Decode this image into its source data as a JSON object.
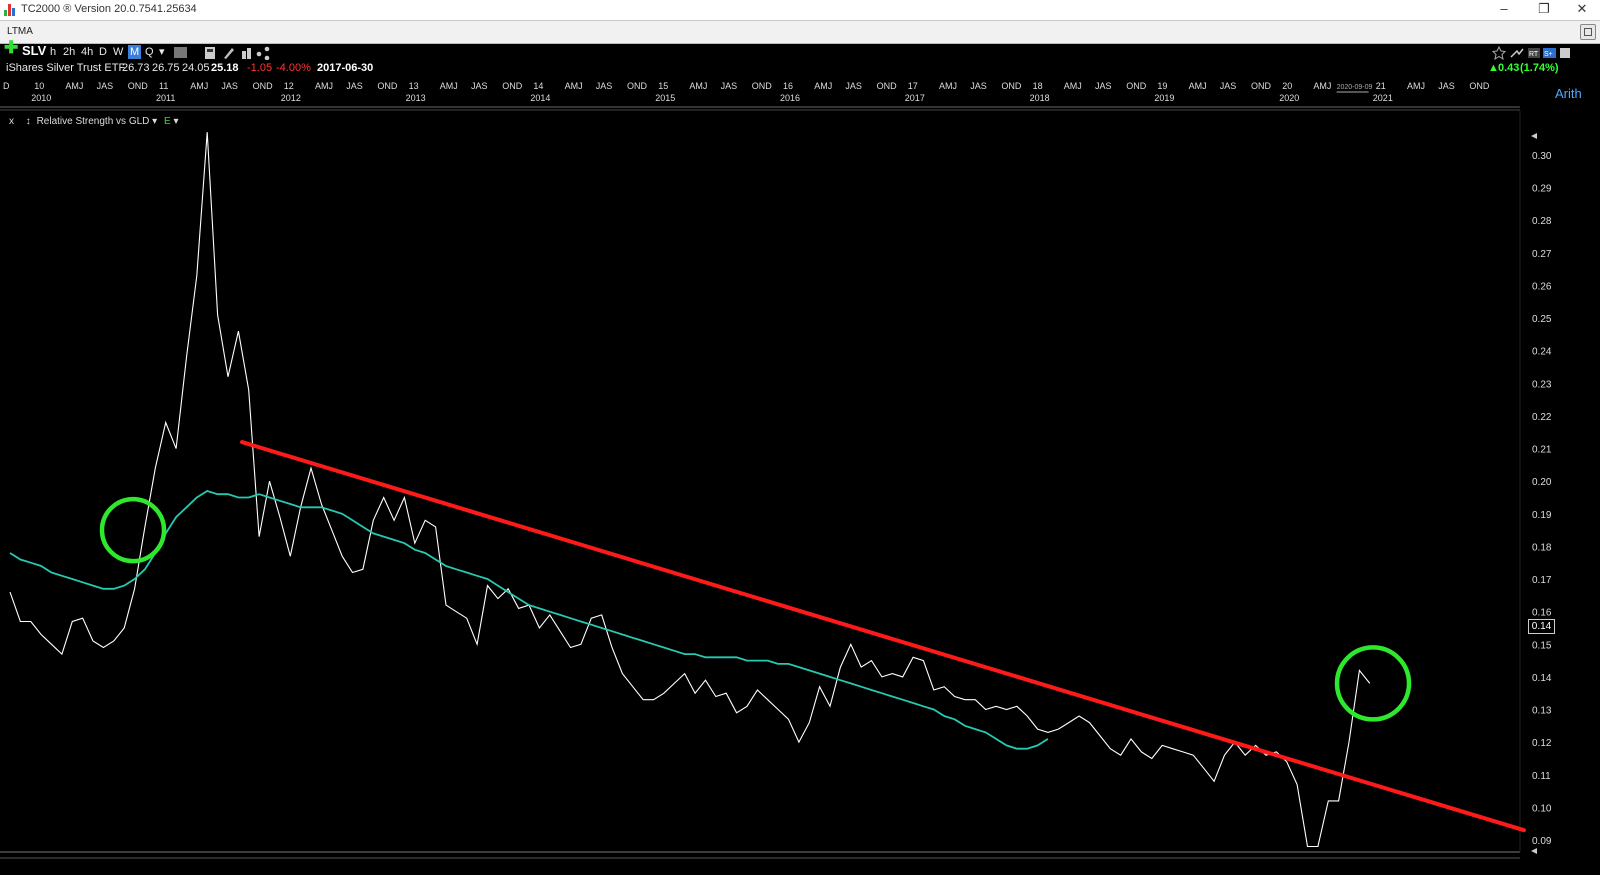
{
  "window": {
    "title": "TC2000 ® Version 20.0.7541.25634",
    "minimize_glyph": "–",
    "restore_glyph": "❐",
    "close_glyph": "✕"
  },
  "layout_tab": {
    "label": "LTMA"
  },
  "toolbar": {
    "plus": "✚",
    "symbol": "SLV",
    "timeframes": [
      "h",
      "2h",
      "4h",
      "D",
      "W",
      "M",
      "Q"
    ],
    "selected_timeframe": "M",
    "dropdown": "▾",
    "icons": [
      "tc-badge-icon",
      "calculator-icon",
      "pencil-icon",
      "chart-blocks-icon",
      "share-icon"
    ],
    "right_icons": [
      "star-icon",
      "trend-arrow-icon",
      "rt-badge",
      "s-plus-badge",
      "save-icon"
    ],
    "right_badges": [
      "RT",
      "S+"
    ]
  },
  "quote": {
    "name": "iShares Silver Trust ETF",
    "open": "26.73",
    "high": "26.75",
    "low": "24.05",
    "close": "25.18",
    "change": "-1.05",
    "change_pct": "-4.00%",
    "date": "2017-06-30",
    "live_change": "0.43",
    "live_change_pct": "(1.74%)",
    "live_arrow": "▲"
  },
  "scale_mode": "Arith",
  "indicator": {
    "close_x": "x",
    "arrows": "↕",
    "label": "Relative Strength vs GLD",
    "dropdown": "▾",
    "e_label": "E",
    "e_color": "#33dd33"
  },
  "current_value_tag": "0.14",
  "chart_data": {
    "type": "line",
    "title": "Relative Strength vs GLD",
    "x_axis_top_row": [
      "D",
      "10",
      "AMJ",
      "JAS",
      "OND",
      "11",
      "AMJ",
      "JAS",
      "OND",
      "12",
      "AMJ",
      "JAS",
      "OND",
      "13",
      "AMJ",
      "JAS",
      "OND",
      "14",
      "AMJ",
      "JAS",
      "OND",
      "15",
      "AMJ",
      "JAS",
      "OND",
      "16",
      "AMJ",
      "JAS",
      "OND",
      "17",
      "AMJ",
      "JAS",
      "OND",
      "18",
      "AMJ",
      "JAS",
      "OND",
      "19",
      "AMJ",
      "JAS",
      "OND",
      "20",
      "AMJ",
      "2020-09-09",
      "21",
      "AMJ",
      "JAS",
      "OND"
    ],
    "x_axis_years": [
      "2010",
      "2011",
      "2012",
      "2013",
      "2014",
      "2015",
      "2016",
      "2017",
      "2018",
      "2019",
      "2020",
      "2021"
    ],
    "y_ticks": [
      "0.30",
      "0.29",
      "0.28",
      "0.27",
      "0.26",
      "0.25",
      "0.24",
      "0.23",
      "0.22",
      "0.21",
      "0.20",
      "0.19",
      "0.18",
      "0.17",
      "0.16",
      "0.15",
      "0.14",
      "0.13",
      "0.12",
      "0.11",
      "0.10",
      "0.09"
    ],
    "ylim": [
      0.085,
      0.31
    ],
    "scale": "arithmetic",
    "series": [
      {
        "name": "Relative Strength vs GLD",
        "color": "#ffffff",
        "values": [
          0.166,
          0.157,
          0.157,
          0.153,
          0.15,
          0.147,
          0.157,
          0.158,
          0.151,
          0.149,
          0.151,
          0.155,
          0.167,
          0.186,
          0.204,
          0.218,
          0.21,
          0.238,
          0.263,
          0.307,
          0.251,
          0.232,
          0.246,
          0.228,
          0.183,
          0.2,
          0.189,
          0.177,
          0.192,
          0.204,
          0.193,
          0.185,
          0.177,
          0.172,
          0.173,
          0.188,
          0.195,
          0.188,
          0.195,
          0.181,
          0.188,
          0.186,
          0.162,
          0.16,
          0.158,
          0.15,
          0.168,
          0.164,
          0.167,
          0.161,
          0.162,
          0.155,
          0.159,
          0.154,
          0.149,
          0.15,
          0.158,
          0.159,
          0.149,
          0.141,
          0.137,
          0.133,
          0.133,
          0.135,
          0.138,
          0.141,
          0.135,
          0.139,
          0.134,
          0.135,
          0.129,
          0.131,
          0.136,
          0.133,
          0.13,
          0.127,
          0.12,
          0.126,
          0.137,
          0.131,
          0.143,
          0.15,
          0.143,
          0.145,
          0.14,
          0.141,
          0.14,
          0.146,
          0.145,
          0.136,
          0.137,
          0.134,
          0.133,
          0.133,
          0.13,
          0.131,
          0.13,
          0.131,
          0.128,
          0.124,
          0.123,
          0.124,
          0.126,
          0.128,
          0.126,
          0.122,
          0.118,
          0.116,
          0.121,
          0.117,
          0.115,
          0.119,
          0.118,
          0.117,
          0.116,
          0.112,
          0.108,
          0.116,
          0.12,
          0.116,
          0.119,
          0.116,
          0.117,
          0.114,
          0.107,
          0.088,
          0.088,
          0.102,
          0.102,
          0.12,
          0.142,
          0.138
        ]
      },
      {
        "name": "LTMA",
        "color": "#27c9b0",
        "values": [
          0.178,
          0.176,
          0.175,
          0.174,
          0.172,
          0.171,
          0.17,
          0.169,
          0.168,
          0.167,
          0.167,
          0.168,
          0.17,
          0.173,
          0.178,
          0.184,
          0.189,
          0.192,
          0.195,
          0.197,
          0.196,
          0.196,
          0.195,
          0.195,
          0.196,
          0.195,
          0.194,
          0.193,
          0.192,
          0.192,
          0.192,
          0.191,
          0.19,
          0.188,
          0.186,
          0.184,
          0.183,
          0.182,
          0.181,
          0.179,
          0.178,
          0.176,
          0.174,
          0.173,
          0.172,
          0.171,
          0.17,
          0.168,
          0.166,
          0.164,
          0.162,
          0.161,
          0.16,
          0.159,
          0.158,
          0.157,
          0.156,
          0.155,
          0.154,
          0.153,
          0.152,
          0.151,
          0.15,
          0.149,
          0.148,
          0.147,
          0.147,
          0.146,
          0.146,
          0.146,
          0.146,
          0.145,
          0.145,
          0.145,
          0.144,
          0.144,
          0.143,
          0.142,
          0.141,
          0.14,
          0.139,
          0.138,
          0.137,
          0.136,
          0.135,
          0.134,
          0.133,
          0.132,
          0.131,
          0.13,
          0.128,
          0.127,
          0.125,
          0.124,
          0.123,
          0.121,
          0.119,
          0.118,
          0.118,
          0.119,
          0.121
        ]
      }
    ],
    "annotations": [
      {
        "kind": "trendline",
        "color": "#ff1a1a",
        "from_value": 0.212,
        "to_value": 0.093
      },
      {
        "kind": "circle",
        "color": "#2ee82e",
        "center_value": 0.185
      },
      {
        "kind": "circle",
        "color": "#2ee82e",
        "center_value": 0.138
      }
    ]
  }
}
